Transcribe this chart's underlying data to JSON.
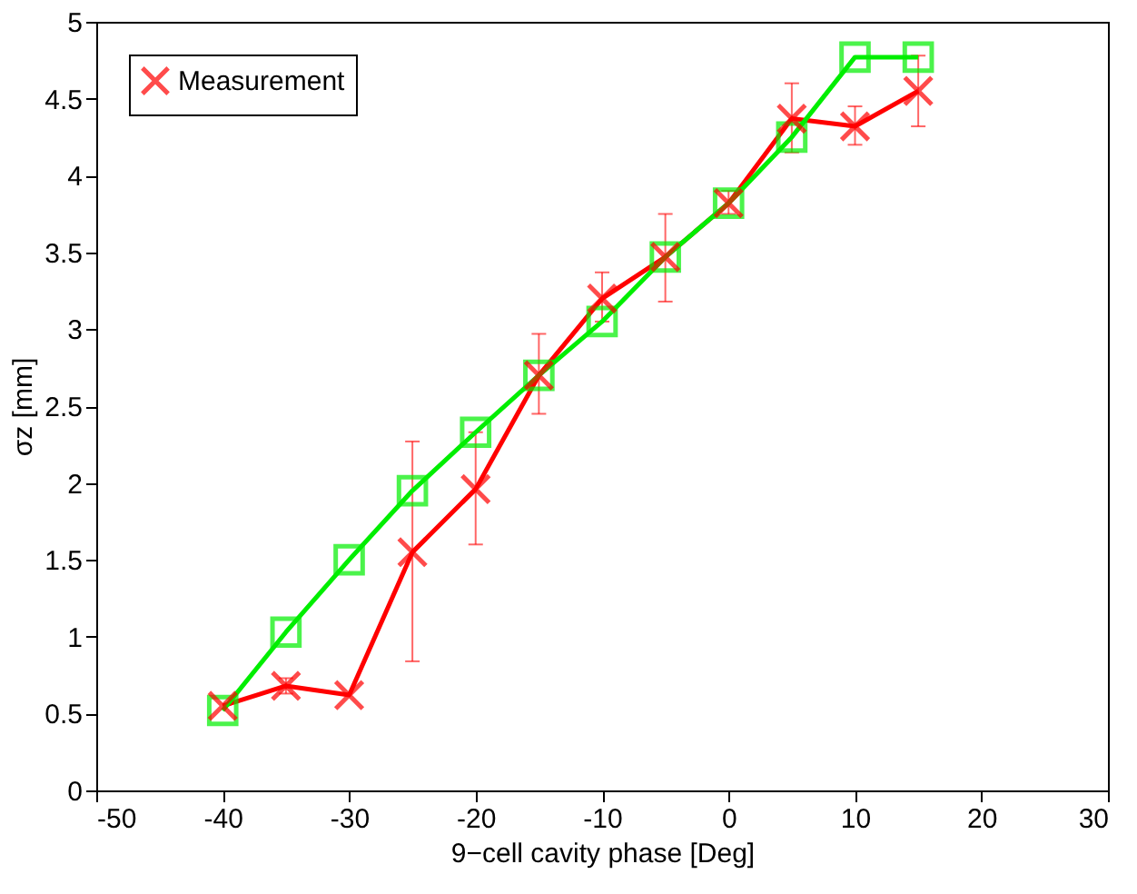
{
  "chart_data": {
    "type": "line",
    "xlabel": "9−cell cavity phase [Deg]",
    "ylabel": "σz [mm]",
    "x": [
      -40,
      -35,
      -30,
      -25,
      -20,
      -15,
      -10,
      -5,
      0,
      5,
      10,
      15
    ],
    "xlim": [
      -50,
      30
    ],
    "xticks": [
      -50,
      -40,
      -30,
      -20,
      -10,
      0,
      10,
      20,
      30
    ],
    "ylim": [
      0,
      5
    ],
    "yticks": [
      0,
      0.5,
      1,
      1.5,
      2,
      2.5,
      3,
      3.5,
      4,
      4.5,
      5
    ],
    "grid": false,
    "legend": "top left",
    "series": [
      {
        "name": "Measurement",
        "color": "#ff0000",
        "marker": "cross",
        "values": [
          0.55,
          0.68,
          0.62,
          1.55,
          1.96,
          2.7,
          3.2,
          3.47,
          3.82,
          4.37,
          4.32,
          4.55
        ],
        "errors": [
          null,
          [
            0.63,
            0.73
          ],
          null,
          [
            0.84,
            2.27
          ],
          [
            1.6,
            2.33
          ],
          [
            2.45,
            2.97
          ],
          [
            3.05,
            3.37
          ],
          [
            3.18,
            3.75
          ],
          [
            3.75,
            3.9
          ],
          [
            4.15,
            4.6
          ],
          [
            4.2,
            4.45
          ],
          [
            4.32,
            4.78
          ]
        ]
      },
      {
        "color": "#00ee00",
        "marker": "square",
        "values": [
          0.52,
          1.03,
          1.5,
          1.95,
          2.33,
          2.7,
          3.05,
          3.47,
          3.82,
          4.25,
          4.77,
          4.77
        ]
      }
    ]
  }
}
